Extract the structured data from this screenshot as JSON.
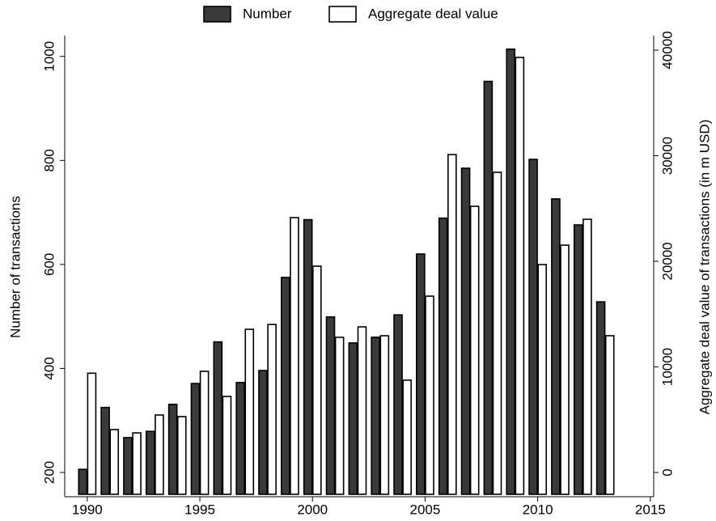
{
  "chart_data": {
    "type": "bar",
    "x": [
      1990,
      1991,
      1992,
      1993,
      1994,
      1995,
      1996,
      1997,
      1998,
      1999,
      2000,
      2001,
      2002,
      2003,
      2004,
      2005,
      2006,
      2007,
      2008,
      2009,
      2010,
      2011,
      2012,
      2013
    ],
    "series": [
      {
        "name": "Number",
        "color": "#3a3a3a",
        "values": [
          206,
          325,
          267,
          279,
          331,
          371,
          451,
          373,
          396,
          575,
          686,
          499,
          449,
          460,
          503,
          620,
          689,
          785,
          952,
          1014,
          802,
          726,
          676,
          528
        ]
      },
      {
        "name": "Aggregate deal value",
        "color": "#ffffff",
        "axis": "y2",
        "values": [
          9400,
          4060,
          3750,
          5440,
          5290,
          9580,
          7200,
          13560,
          14020,
          24140,
          19540,
          12800,
          13790,
          12950,
          8740,
          16700,
          30110,
          25210,
          28430,
          39310,
          19690,
          21530,
          23980,
          12950
        ]
      }
    ],
    "y_label": "Number of transactions",
    "y2_label": "Aggregate deal value of transactions (in m USD)",
    "xlim": [
      1989,
      2015.15
    ],
    "xticks": [
      1990,
      1995,
      2000,
      2005,
      2010,
      2015
    ],
    "ylim": [
      158,
      1040
    ],
    "yticks": [
      200,
      400,
      600,
      800,
      1000
    ],
    "y2lim": [
      -2070,
      41380
    ],
    "y2ticks": [
      0,
      10000,
      20000,
      30000,
      40000
    ],
    "legend": "top"
  }
}
